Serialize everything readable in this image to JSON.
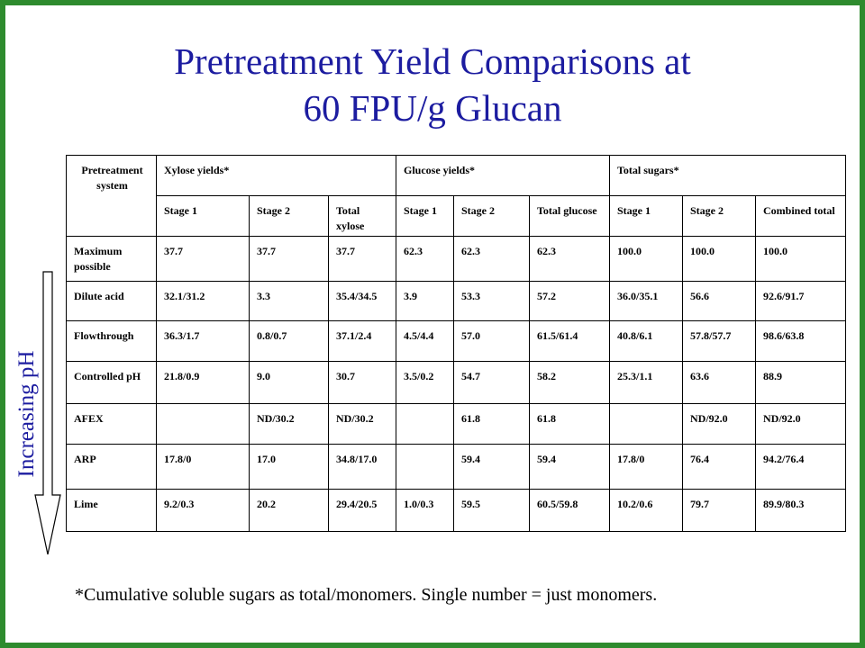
{
  "title": [
    "Pretreatment Yield Comparisons at",
    "60 FPU/g Glucan"
  ],
  "side_label": "Increasing pH",
  "table": {
    "header_groups": [
      "Pretreatment system",
      "Xylose yields*",
      "Glucose yields*",
      "Total sugars*"
    ],
    "subheaders": [
      "Stage 1",
      "Stage 2",
      "Total xylose",
      "Stage 1",
      "Stage 2",
      "Total glucose",
      "Stage 1",
      "Stage 2",
      "Combined total"
    ],
    "rows": [
      [
        "Maximum possible",
        "37.7",
        "37.7",
        "37.7",
        "62.3",
        "62.3",
        "62.3",
        "100.0",
        "100.0",
        "100.0"
      ],
      [
        "Dilute acid",
        "32.1/31.2",
        "3.3",
        "35.4/34.5",
        "3.9",
        "53.3",
        "57.2",
        "36.0/35.1",
        "56.6",
        "92.6/91.7"
      ],
      [
        "Flowthrough",
        "36.3/1.7",
        "0.8/0.7",
        "37.1/2.4",
        "4.5/4.4",
        "57.0",
        "61.5/61.4",
        "40.8/6.1",
        "57.8/57.7",
        "98.6/63.8"
      ],
      [
        "Controlled pH",
        "21.8/0.9",
        "9.0",
        "30.7",
        "3.5/0.2",
        "54.7",
        "58.2",
        "25.3/1.1",
        "63.6",
        "88.9"
      ],
      [
        "AFEX",
        null,
        "ND/30.2",
        "ND/30.2",
        null,
        "61.8",
        "61.8",
        null,
        "ND/92.0",
        "ND/92.0"
      ],
      [
        "ARP",
        "17.8/0",
        "17.0",
        "34.8/17.0",
        null,
        "59.4",
        "59.4",
        "17.8/0",
        "76.4",
        "94.2/76.4"
      ],
      [
        "Lime",
        "9.2/0.3",
        "20.2",
        "29.4/20.5",
        "1.0/0.3",
        "59.5",
        "60.5/59.8",
        "10.2/0.6",
        "79.7",
        "89.9/80.3"
      ]
    ]
  },
  "footnote": "*Cumulative soluble sugars as total/monomers. Single number = just monomers."
}
